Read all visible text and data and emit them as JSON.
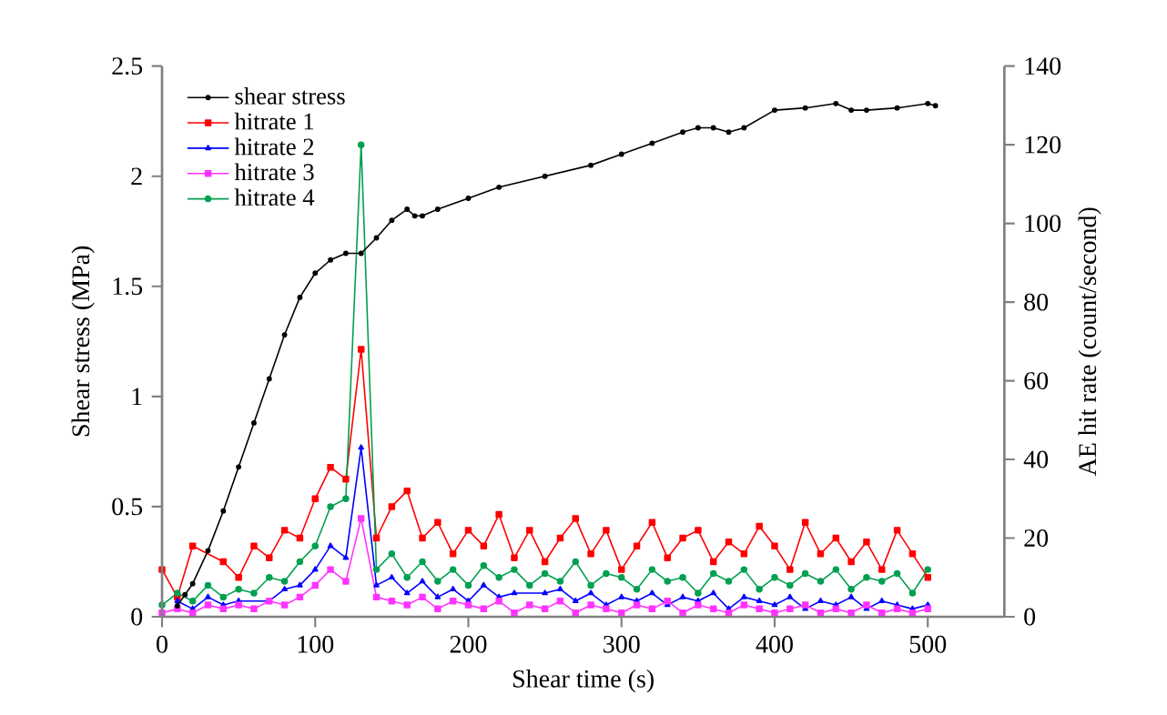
{
  "chart_data": {
    "type": "line",
    "xlabel": "Shear time (s)",
    "ylabel": "Shear stress (MPa)",
    "y2label": "AE hit rate (count/second)",
    "xlim": [
      0,
      550
    ],
    "xticks": [
      0,
      100,
      200,
      300,
      400,
      500
    ],
    "ylim": [
      0,
      2.5
    ],
    "yticks": [
      0,
      0.5,
      1,
      1.5,
      2,
      2.5
    ],
    "y2lim": [
      0,
      140
    ],
    "y2ticks": [
      0,
      20,
      40,
      60,
      80,
      100,
      120,
      140
    ],
    "legend": "top left",
    "grid": false,
    "series": [
      {
        "name": "shear stress",
        "color": "#000000",
        "marker": "circle",
        "x": [
          10,
          15,
          20,
          30,
          40,
          50,
          60,
          70,
          80,
          90,
          100,
          110,
          120,
          130,
          140,
          150,
          160,
          165,
          170,
          180,
          200,
          220,
          250,
          280,
          300,
          320,
          340,
          350,
          360,
          370,
          380,
          400,
          420,
          440,
          450,
          460,
          480,
          500,
          505
        ],
        "values": [
          0.05,
          0.1,
          0.15,
          0.3,
          0.48,
          0.68,
          0.88,
          1.08,
          1.28,
          1.45,
          1.56,
          1.62,
          1.65,
          1.65,
          1.72,
          1.8,
          1.85,
          1.82,
          1.82,
          1.85,
          1.9,
          1.95,
          2.0,
          2.05,
          2.1,
          2.15,
          2.2,
          2.22,
          2.22,
          2.2,
          2.22,
          2.3,
          2.31,
          2.33,
          2.3,
          2.3,
          2.31,
          2.33,
          2.32
        ]
      },
      {
        "name": "hitrate 1",
        "color": "#ff0000",
        "marker": "square",
        "axis": "y2",
        "x": [
          0,
          10,
          20,
          30,
          40,
          50,
          60,
          70,
          80,
          90,
          100,
          110,
          120,
          130,
          140,
          150,
          160,
          170,
          180,
          190,
          200,
          210,
          220,
          230,
          240,
          250,
          260,
          270,
          280,
          290,
          300,
          310,
          320,
          330,
          340,
          350,
          360,
          370,
          380,
          390,
          400,
          410,
          420,
          430,
          440,
          450,
          460,
          470,
          480,
          490,
          500
        ],
        "values": [
          12,
          5,
          18,
          null,
          14,
          10,
          18,
          15,
          22,
          20,
          30,
          38,
          35,
          68,
          20,
          28,
          32,
          20,
          24,
          16,
          22,
          18,
          26,
          15,
          22,
          14,
          20,
          25,
          16,
          22,
          12,
          18,
          24,
          15,
          20,
          22,
          14,
          19,
          16,
          23,
          18,
          12,
          24,
          16,
          20,
          14,
          19,
          12,
          22,
          16,
          10
        ]
      },
      {
        "name": "hitrate 2",
        "color": "#0000ff",
        "marker": "triangle",
        "axis": "y2",
        "x": [
          10,
          20,
          30,
          40,
          50,
          60,
          70,
          80,
          90,
          100,
          110,
          120,
          130,
          140,
          150,
          160,
          170,
          180,
          190,
          200,
          210,
          220,
          230,
          240,
          250,
          260,
          270,
          280,
          290,
          300,
          310,
          320,
          330,
          340,
          350,
          360,
          370,
          380,
          390,
          400,
          410,
          420,
          430,
          440,
          450,
          460,
          470,
          480,
          490,
          500
        ],
        "values": [
          4,
          2,
          5,
          3,
          4,
          null,
          4,
          7,
          8,
          12,
          18,
          15,
          43,
          8,
          10,
          6,
          9,
          5,
          7,
          4,
          8,
          5,
          6,
          null,
          6,
          7,
          4,
          6,
          3,
          5,
          4,
          6,
          3,
          5,
          4,
          6,
          2,
          5,
          4,
          3,
          5,
          2,
          4,
          3,
          5,
          2,
          4,
          3,
          2,
          3
        ]
      },
      {
        "name": "hitrate 3",
        "color": "#ff33ff",
        "marker": "square",
        "axis": "y2",
        "x": [
          0,
          10,
          20,
          30,
          40,
          50,
          60,
          70,
          80,
          90,
          100,
          110,
          120,
          130,
          140,
          150,
          160,
          170,
          180,
          190,
          200,
          210,
          220,
          230,
          240,
          250,
          260,
          270,
          280,
          290,
          300,
          310,
          320,
          330,
          340,
          350,
          360,
          370,
          380,
          390,
          400,
          410,
          420,
          430,
          440,
          450,
          460,
          470,
          480,
          490,
          500
        ],
        "values": [
          1,
          2,
          1,
          3,
          2,
          3,
          2,
          4,
          3,
          5,
          8,
          12,
          9,
          25,
          5,
          4,
          3,
          5,
          2,
          4,
          3,
          2,
          4,
          1,
          3,
          2,
          4,
          1,
          3,
          2,
          1,
          3,
          2,
          4,
          1,
          3,
          2,
          1,
          3,
          2,
          1,
          2,
          3,
          1,
          2,
          1,
          3,
          1,
          2,
          1,
          2
        ]
      },
      {
        "name": "hitrate 4",
        "color": "#00a050",
        "marker": "circle",
        "axis": "y2",
        "x": [
          0,
          10,
          20,
          30,
          40,
          50,
          60,
          70,
          80,
          90,
          100,
          110,
          120,
          130,
          140,
          150,
          160,
          170,
          180,
          190,
          200,
          210,
          220,
          230,
          240,
          250,
          260,
          270,
          280,
          290,
          300,
          310,
          320,
          330,
          340,
          350,
          360,
          370,
          380,
          390,
          400,
          410,
          420,
          430,
          440,
          450,
          460,
          470,
          480,
          490,
          500
        ],
        "values": [
          3,
          6,
          4,
          8,
          5,
          7,
          6,
          10,
          9,
          14,
          18,
          28,
          30,
          120,
          12,
          16,
          10,
          14,
          9,
          12,
          8,
          13,
          10,
          12,
          8,
          11,
          9,
          14,
          8,
          11,
          10,
          7,
          12,
          9,
          10,
          6,
          11,
          9,
          12,
          7,
          10,
          8,
          11,
          9,
          12,
          7,
          10,
          9,
          11,
          6,
          12
        ]
      }
    ]
  }
}
